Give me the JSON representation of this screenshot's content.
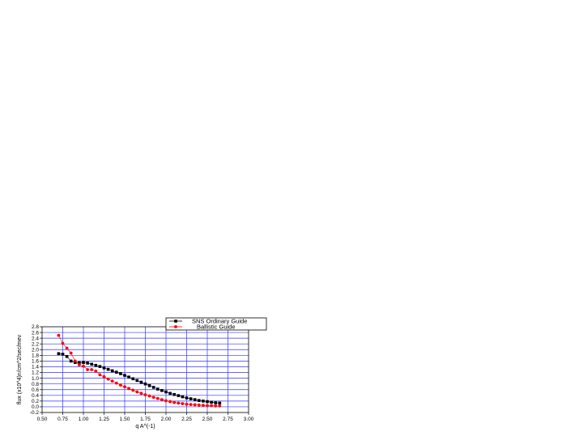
{
  "chart_data": {
    "type": "line",
    "title": "",
    "xlabel": "q A^(-1)",
    "ylabel": "flux (x10^4)n/cm^2/sec/mev",
    "xlim": [
      0.5,
      3.0
    ],
    "ylim": [
      -0.2,
      2.8
    ],
    "xticks": [
      "0.50",
      "0.75",
      "1.00",
      "1.25",
      "1.50",
      "1.75",
      "2.00",
      "2.25",
      "2.50",
      "2.75",
      "3.00"
    ],
    "yticks": [
      "-0.2",
      "0.0",
      "0.2",
      "0.4",
      "0.6",
      "0.8",
      "1.0",
      "1.2",
      "1.4",
      "1.6",
      "1.8",
      "2.0",
      "2.2",
      "2.4",
      "2.6",
      "2.8"
    ],
    "grid": true,
    "grid_color": "#3333ff",
    "legend_position": "top-right",
    "series": [
      {
        "name": "SNS Ordinary Guide",
        "color": "#000000",
        "marker": "square",
        "x": [
          0.7,
          0.75,
          0.8,
          0.85,
          0.9,
          0.95,
          1.0,
          1.05,
          1.1,
          1.15,
          1.2,
          1.25,
          1.3,
          1.35,
          1.4,
          1.45,
          1.5,
          1.55,
          1.6,
          1.65,
          1.7,
          1.75,
          1.8,
          1.85,
          1.9,
          1.95,
          2.0,
          2.05,
          2.1,
          2.15,
          2.2,
          2.25,
          2.3,
          2.35,
          2.4,
          2.45,
          2.5,
          2.55,
          2.6,
          2.65
        ],
        "y": [
          1.86,
          1.84,
          1.76,
          1.6,
          1.55,
          1.54,
          1.55,
          1.53,
          1.49,
          1.45,
          1.41,
          1.36,
          1.31,
          1.26,
          1.21,
          1.16,
          1.1,
          1.04,
          0.98,
          0.92,
          0.86,
          0.8,
          0.74,
          0.68,
          0.62,
          0.57,
          0.52,
          0.47,
          0.43,
          0.39,
          0.35,
          0.31,
          0.28,
          0.25,
          0.22,
          0.2,
          0.18,
          0.16,
          0.14,
          0.13
        ]
      },
      {
        "name": "Ballistic Guide",
        "color": "#ff0000",
        "marker": "circle",
        "x": [
          0.7,
          0.75,
          0.8,
          0.85,
          0.9,
          0.95,
          1.0,
          1.05,
          1.1,
          1.15,
          1.2,
          1.25,
          1.3,
          1.35,
          1.4,
          1.45,
          1.5,
          1.55,
          1.6,
          1.65,
          1.7,
          1.75,
          1.8,
          1.85,
          1.9,
          1.95,
          2.0,
          2.05,
          2.1,
          2.15,
          2.2,
          2.25,
          2.3,
          2.35,
          2.4,
          2.45,
          2.5,
          2.55,
          2.6,
          2.65
        ],
        "y": [
          2.5,
          2.22,
          2.05,
          1.88,
          1.6,
          1.47,
          1.42,
          1.3,
          1.3,
          1.25,
          1.12,
          1.05,
          0.97,
          0.9,
          0.83,
          0.76,
          0.7,
          0.64,
          0.58,
          0.52,
          0.47,
          0.42,
          0.38,
          0.33,
          0.29,
          0.25,
          0.21,
          0.18,
          0.15,
          0.13,
          0.11,
          0.09,
          0.08,
          0.07,
          0.06,
          0.05,
          0.04,
          0.04,
          0.03,
          0.03
        ]
      }
    ]
  }
}
